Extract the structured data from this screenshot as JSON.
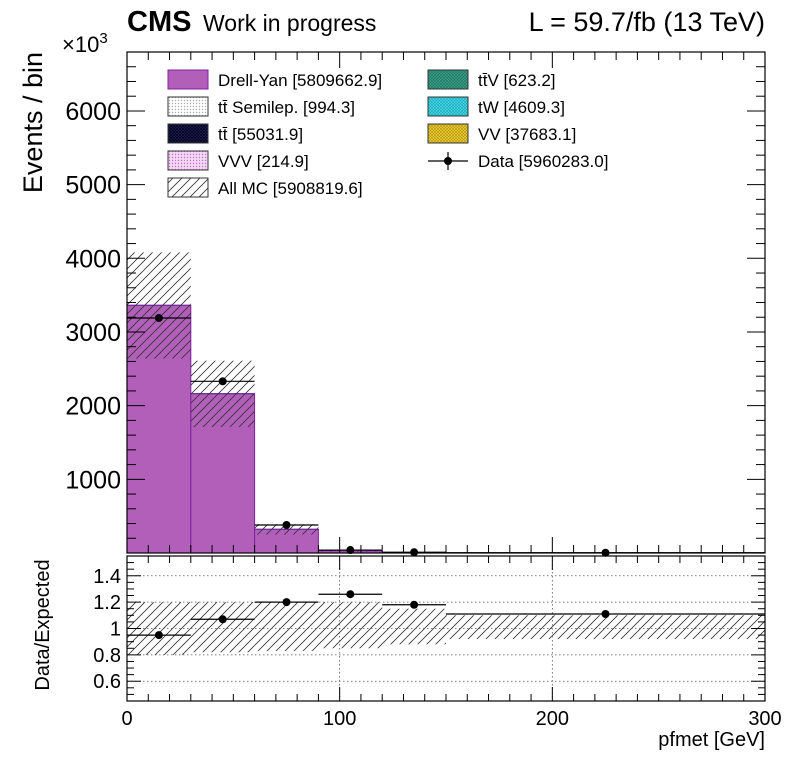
{
  "header": {
    "cms": "CMS",
    "status": "Work in progress",
    "lumi": "L = 59.7/fb (13 TeV)",
    "exponent_base": "×10",
    "exponent_power": "3"
  },
  "legend": [
    {
      "label": "Drell-Yan [5809662.9]",
      "color": "#b15fb8",
      "style": "solid"
    },
    {
      "label": "tt̄ Semilep. [994.3]",
      "color": "#e4e4e4",
      "style": "dots"
    },
    {
      "label": "tt̄ [55031.9]",
      "color": "#1a1a60",
      "style": "grid"
    },
    {
      "label": "VVV [214.9]",
      "color": "#e8b4e8",
      "style": "dots"
    },
    {
      "label": "All MC [5908819.6]",
      "color": "#ffffff",
      "style": "hatch"
    },
    {
      "label": "tt̄V [623.2]",
      "color": "#3aa48c",
      "style": "grid"
    },
    {
      "label": "tW [4609.3]",
      "color": "#40dcec",
      "style": "grid"
    },
    {
      "label": "VV [37683.1]",
      "color": "#f0d030",
      "style": "grid"
    },
    {
      "label": "Data [5960283.0]",
      "color": "#000000",
      "style": "marker"
    }
  ],
  "chart_data": [
    {
      "type": "bar",
      "panel": "main",
      "ylabel": "Events / bin",
      "ylim": [
        0,
        6.8
      ],
      "yticks": [
        1,
        2,
        3,
        4,
        5,
        6
      ],
      "ytick_labels": [
        "1000",
        "2000",
        "3000",
        "4000",
        "5000",
        "6000"
      ],
      "xlim": [
        0,
        300
      ],
      "bins": [
        [
          0,
          30
        ],
        [
          30,
          60
        ],
        [
          60,
          90
        ],
        [
          90,
          120
        ],
        [
          120,
          150
        ],
        [
          150,
          300
        ]
      ],
      "stack_total": [
        3.36,
        2.16,
        0.32,
        0.03,
        0.005,
        0.002
      ],
      "ttbar_top": [
        3.37,
        2.17,
        0.33,
        0.04,
        0.008,
        0.003
      ],
      "mc_unc": [
        0.72,
        0.45,
        0.07,
        0.01,
        0.002,
        0.001
      ],
      "data": [
        3.19,
        2.33,
        0.38,
        0.04,
        0.01,
        0.004
      ],
      "data_xerr": [
        15,
        15,
        15,
        15,
        15,
        75
      ],
      "grid": false
    },
    {
      "type": "scatter",
      "panel": "ratio",
      "ylabel": "Data/Expected",
      "xlabel": "pfmet [GeV]",
      "ylim": [
        0.45,
        1.55
      ],
      "yticks": [
        0.6,
        0.8,
        1,
        1.2,
        1.4
      ],
      "ytick_labels": [
        "0.6",
        "0.8",
        "1",
        "1.2",
        "1.4"
      ],
      "xticks": [
        0,
        100,
        200,
        300
      ],
      "xtick_labels": [
        "0",
        "100",
        "200",
        "300"
      ],
      "x": [
        15,
        45,
        75,
        105,
        135,
        225
      ],
      "xerr": [
        15,
        15,
        15,
        15,
        15,
        75
      ],
      "y": [
        0.95,
        1.07,
        1.2,
        1.26,
        1.18,
        1.11
      ],
      "band_lo": [
        0.8,
        0.82,
        0.83,
        0.85,
        0.88,
        0.92
      ],
      "band_hi": [
        1.2,
        1.2,
        1.2,
        1.2,
        1.15,
        1.1
      ],
      "grid": true
    }
  ]
}
